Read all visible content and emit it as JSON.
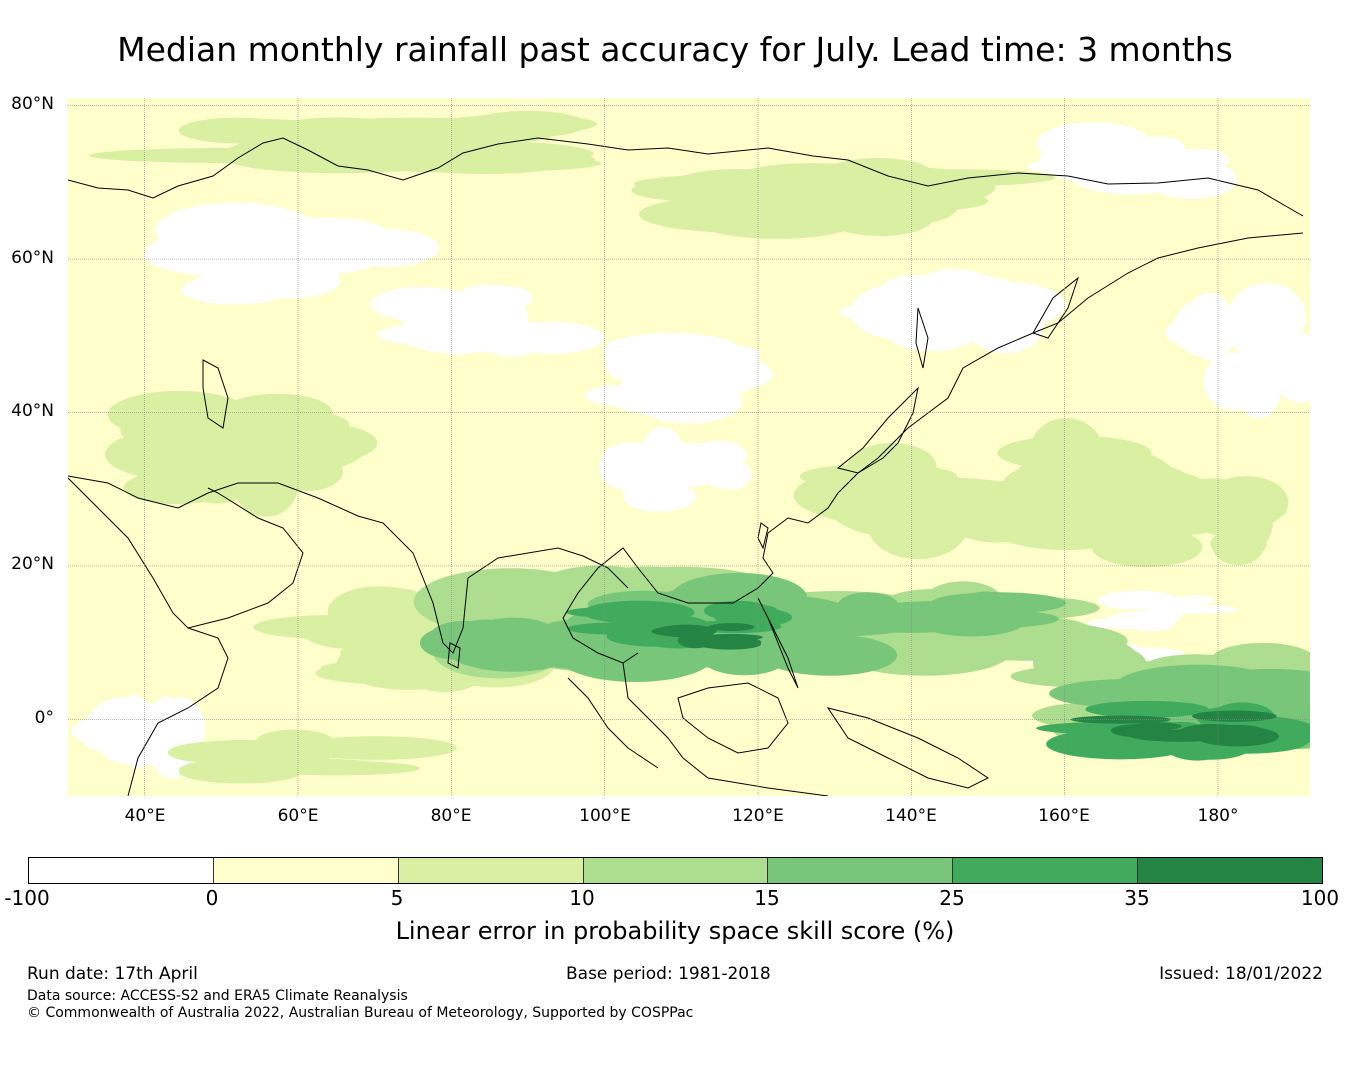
{
  "title": "Median monthly rainfall past accuracy for July. Lead time: 3 months",
  "map": {
    "lat_labels": [
      "80°N",
      "60°N",
      "40°N",
      "20°N",
      "0°"
    ],
    "lon_labels": [
      "40°E",
      "60°E",
      "80°E",
      "100°E",
      "120°E",
      "140°E",
      "160°E",
      "180°"
    ],
    "extent": {
      "lon_min": 30,
      "lon_max": 192,
      "lat_min": -10,
      "lat_max": 81
    },
    "colors": {
      "lt0": "#ffffff",
      "0to5": "#ffffcc",
      "5to10": "#d9f0a3",
      "10to15": "#addd8e",
      "15to25": "#78c679",
      "25to35": "#41ab5d",
      "35to100": "#238443"
    }
  },
  "colorbar": {
    "ticks": [
      "-100",
      "0",
      "5",
      "10",
      "15",
      "25",
      "35",
      "100"
    ],
    "label": "Linear error in probability space skill score (%)"
  },
  "footer": {
    "run_date": "Run date: 17th April",
    "base_period": "Base period: 1981-2018",
    "issued": "Issued: 18/01/2022",
    "data_source": "Data source: ACCESS-S2 and ERA5 Climate Reanalysis",
    "copyright": "© Commonwealth of Australia 2022, Australian Bureau of Meteorology, Supported by COSPPac"
  }
}
